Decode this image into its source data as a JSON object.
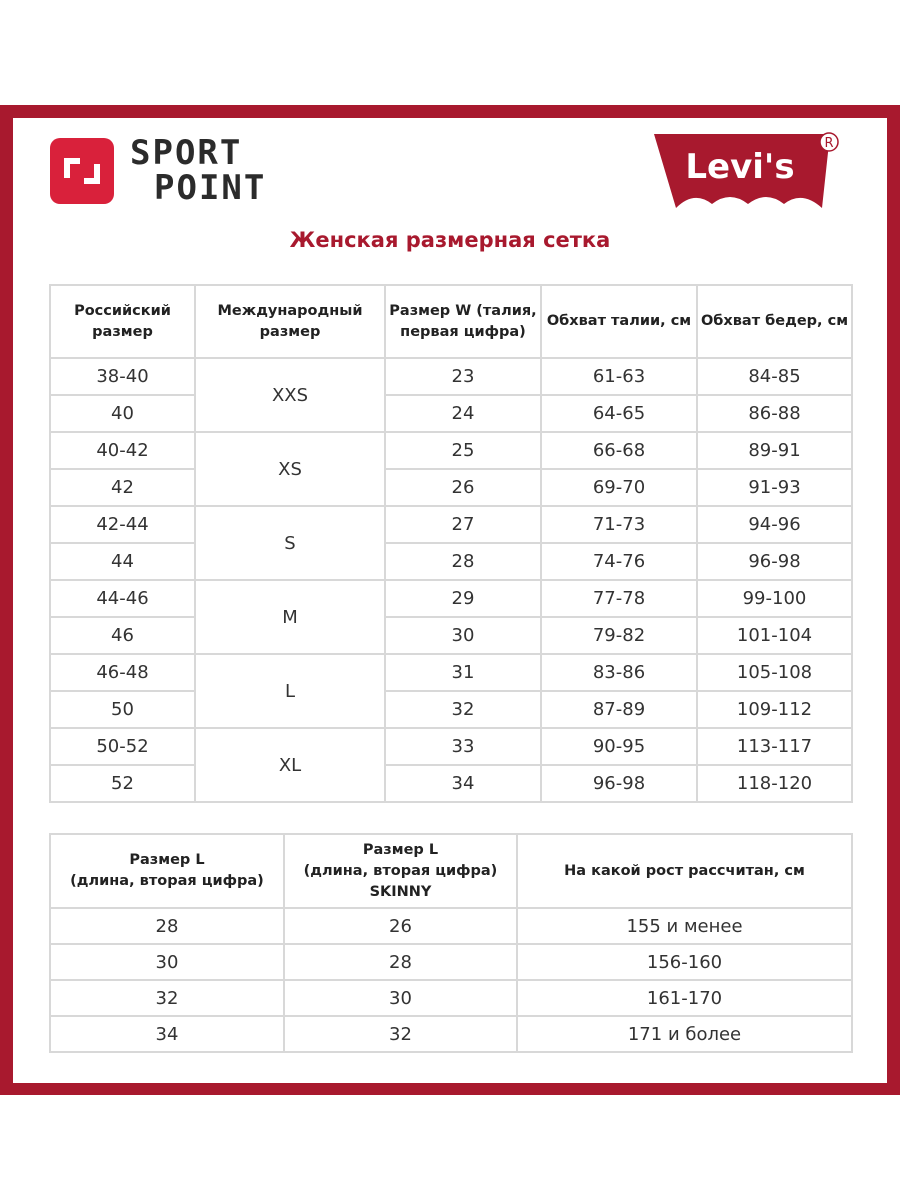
{
  "brand": {
    "name_line1": "SPORT",
    "name_line2": "POINT",
    "partner_logo_text": "Levi's",
    "registered_mark": "®",
    "accent_color": "#a8192e",
    "logo_color": "#d9213b"
  },
  "title": "Женская размерная сетка",
  "size_table": {
    "headers": [
      "Российский размер",
      "Международный размер",
      "Размер W (талия, первая цифра)",
      "Обхват талии, см",
      "Обхват бедер, см"
    ],
    "rows": [
      {
        "ru": "38-40",
        "intl": "XXS",
        "w": "23",
        "waist": "61-63",
        "hips": "84-85"
      },
      {
        "ru": "40",
        "w": "24",
        "waist": "64-65",
        "hips": "86-88"
      },
      {
        "ru": "40-42",
        "intl": "XS",
        "w": "25",
        "waist": "66-68",
        "hips": "89-91"
      },
      {
        "ru": "42",
        "w": "26",
        "waist": "69-70",
        "hips": "91-93"
      },
      {
        "ru": "42-44",
        "intl": "S",
        "w": "27",
        "waist": "71-73",
        "hips": "94-96"
      },
      {
        "ru": "44",
        "w": "28",
        "waist": "74-76",
        "hips": "96-98"
      },
      {
        "ru": "44-46",
        "intl": "M",
        "w": "29",
        "waist": "77-78",
        "hips": "99-100"
      },
      {
        "ru": "46",
        "w": "30",
        "waist": "79-82",
        "hips": "101-104"
      },
      {
        "ru": "46-48",
        "intl": "L",
        "w": "31",
        "waist": "83-86",
        "hips": "105-108"
      },
      {
        "ru": "50",
        "w": "32",
        "waist": "87-89",
        "hips": "109-112"
      },
      {
        "ru": "50-52",
        "intl": "XL",
        "w": "33",
        "waist": "90-95",
        "hips": "113-117"
      },
      {
        "ru": "52",
        "w": "34",
        "waist": "96-98",
        "hips": "118-120"
      }
    ]
  },
  "length_table": {
    "headers": [
      "Размер  L\n(длина, вторая цифра)",
      "Размер L\n(длина, вторая цифра)\nSKINNY",
      "На какой рост рассчитан, см"
    ],
    "rows": [
      [
        "28",
        "26",
        "155 и менее"
      ],
      [
        "30",
        "28",
        "156-160"
      ],
      [
        "32",
        "30",
        "161-170"
      ],
      [
        "34",
        "32",
        "171 и более"
      ]
    ]
  }
}
